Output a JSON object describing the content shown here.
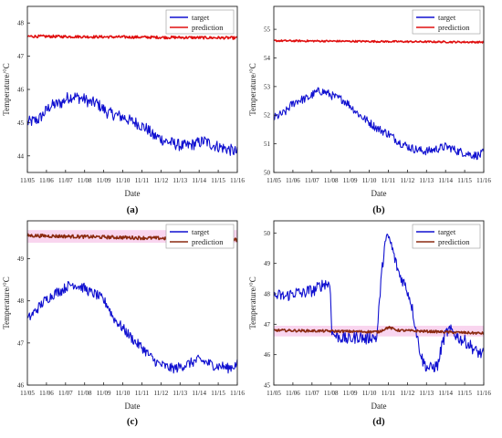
{
  "chart_data": [
    {
      "type": "line",
      "panel_label": "(a)",
      "xlabel": "Date",
      "ylabel": "Temperature/°C",
      "x_ticks": [
        "11/05",
        "11/06",
        "11/07",
        "11/08",
        "11/09",
        "11/10",
        "11/11",
        "11/12",
        "11/13",
        "11/14",
        "11/15",
        "11/16"
      ],
      "ylim": [
        43.5,
        48.5
      ],
      "y_ticks": [
        44,
        45,
        46,
        47,
        48
      ],
      "legend": "top-right",
      "band": null,
      "series": [
        {
          "name": "target",
          "color": "#1010d0",
          "noise": 0.18,
          "x": [
            0,
            0.3,
            0.6,
            0.9,
            1.2,
            1.5,
            1.8,
            2.1,
            2.4,
            2.7,
            3.0,
            3.3,
            3.6,
            3.9,
            4.2,
            4.5,
            4.8,
            5.1,
            5.4,
            5.7,
            6.0,
            6.3,
            6.6,
            6.9,
            7.2,
            7.5,
            7.8,
            8.1,
            8.4,
            8.7,
            9.0,
            9.3,
            9.6,
            9.9,
            10.2,
            10.5,
            10.8,
            11.0
          ],
          "y": [
            45.0,
            45.05,
            45.1,
            45.3,
            45.5,
            45.55,
            45.6,
            45.75,
            45.8,
            45.75,
            45.7,
            45.6,
            45.6,
            45.45,
            45.3,
            45.25,
            45.2,
            45.15,
            45.05,
            45.0,
            44.9,
            44.8,
            44.6,
            44.55,
            44.45,
            44.4,
            44.35,
            44.3,
            44.3,
            44.35,
            44.4,
            44.45,
            44.35,
            44.3,
            44.25,
            44.2,
            44.15,
            44.1
          ]
        },
        {
          "name": "prediction",
          "color": "#e01010",
          "noise": 0.04,
          "x": [
            0,
            11
          ],
          "y": [
            47.6,
            47.55
          ]
        }
      ]
    },
    {
      "type": "line",
      "panel_label": "(b)",
      "xlabel": "Date",
      "ylabel": "Temperature/°C",
      "x_ticks": [
        "11/05",
        "11/06",
        "11/07",
        "11/08",
        "11/09",
        "11/10",
        "11/11",
        "11/12",
        "11/13",
        "11/14",
        "11/15",
        "11/16"
      ],
      "ylim": [
        50,
        55.8
      ],
      "y_ticks": [
        50,
        51,
        52,
        53,
        54,
        55
      ],
      "legend": "top-right",
      "band": null,
      "series": [
        {
          "name": "target",
          "color": "#1010d0",
          "noise": 0.15,
          "x": [
            0,
            0.3,
            0.6,
            0.9,
            1.2,
            1.5,
            1.8,
            2.1,
            2.4,
            2.7,
            3.0,
            3.3,
            3.6,
            3.9,
            4.2,
            4.5,
            4.8,
            5.1,
            5.4,
            5.7,
            6.0,
            6.3,
            6.6,
            6.9,
            7.2,
            7.5,
            7.8,
            8.1,
            8.4,
            8.7,
            9.0,
            9.3,
            9.6,
            9.9,
            10.2,
            10.5,
            10.8,
            11.0
          ],
          "y": [
            51.9,
            52.0,
            52.1,
            52.35,
            52.5,
            52.55,
            52.6,
            52.75,
            52.85,
            52.8,
            52.7,
            52.6,
            52.55,
            52.4,
            52.2,
            52.0,
            51.85,
            51.7,
            51.55,
            51.45,
            51.35,
            51.2,
            51.05,
            50.95,
            50.85,
            50.8,
            50.75,
            50.75,
            50.8,
            50.85,
            50.9,
            50.85,
            50.75,
            50.7,
            50.65,
            50.6,
            50.6,
            50.7
          ]
        },
        {
          "name": "prediction",
          "color": "#e01010",
          "noise": 0.03,
          "x": [
            0,
            11
          ],
          "y": [
            54.6,
            54.55
          ]
        }
      ]
    },
    {
      "type": "line",
      "panel_label": "(c)",
      "xlabel": "Date",
      "ylabel": "Temperature/°C",
      "x_ticks": [
        "11/05",
        "11/06",
        "11/07",
        "11/08",
        "11/09",
        "11/10",
        "11/11",
        "11/12",
        "11/13",
        "11/14",
        "11/15",
        "11/16"
      ],
      "ylim": [
        46,
        49.9
      ],
      "y_ticks": [
        46,
        47,
        48,
        49
      ],
      "legend": "top-right",
      "band": {
        "low": 49.38,
        "high": 49.68,
        "color": "#f7c7ea"
      },
      "series": [
        {
          "name": "target",
          "color": "#1010d0",
          "noise": 0.12,
          "x": [
            0,
            0.3,
            0.6,
            0.9,
            1.2,
            1.5,
            1.8,
            2.1,
            2.4,
            2.7,
            3.0,
            3.3,
            3.6,
            3.9,
            4.2,
            4.5,
            4.8,
            5.1,
            5.4,
            5.7,
            6.0,
            6.3,
            6.6,
            6.9,
            7.2,
            7.5,
            7.8,
            8.1,
            8.4,
            8.7,
            9.0,
            9.3,
            9.6,
            9.9,
            10.2,
            10.5,
            10.8,
            11.0
          ],
          "y": [
            47.55,
            47.7,
            47.85,
            48.0,
            48.1,
            48.2,
            48.25,
            48.35,
            48.4,
            48.35,
            48.3,
            48.2,
            48.15,
            48.05,
            47.9,
            47.6,
            47.45,
            47.3,
            47.15,
            47.0,
            46.9,
            46.75,
            46.6,
            46.5,
            46.45,
            46.4,
            46.4,
            46.45,
            46.5,
            46.55,
            46.6,
            46.55,
            46.5,
            46.45,
            46.45,
            46.4,
            46.45,
            46.5
          ]
        },
        {
          "name": "prediction",
          "color": "#8b2a10",
          "noise": 0.04,
          "x": [
            0,
            11
          ],
          "y": [
            49.55,
            49.45
          ]
        }
      ]
    },
    {
      "type": "line",
      "panel_label": "(d)",
      "xlabel": "Date",
      "ylabel": "Temperature/°C",
      "x_ticks": [
        "11/05",
        "11/06",
        "11/07",
        "11/08",
        "11/09",
        "11/10",
        "11/11",
        "11/12",
        "11/13",
        "11/14",
        "11/15",
        "11/16"
      ],
      "ylim": [
        45,
        50.4
      ],
      "y_ticks": [
        45,
        46,
        47,
        48,
        49,
        50
      ],
      "legend": "top-right",
      "band": {
        "low": 46.6,
        "high": 46.95,
        "color": "#f7c7ea"
      },
      "series": [
        {
          "name": "target",
          "color": "#1010d0",
          "noise": 0.2,
          "x": [
            0,
            0.3,
            0.6,
            0.9,
            1.2,
            1.5,
            1.8,
            2.1,
            2.4,
            2.7,
            2.95,
            3.05,
            3.3,
            3.6,
            3.9,
            4.2,
            4.5,
            4.8,
            5.1,
            5.4,
            5.6,
            5.8,
            6.0,
            6.2,
            6.4,
            6.6,
            6.8,
            7.0,
            7.2,
            7.4,
            7.6,
            7.8,
            8.0,
            8.2,
            8.4,
            8.6,
            8.8,
            9.0,
            9.2,
            9.4,
            9.6,
            9.8,
            10.0,
            10.3,
            10.6,
            10.8,
            11.0
          ],
          "y": [
            47.9,
            47.95,
            47.9,
            48.0,
            48.05,
            48.0,
            48.1,
            48.1,
            48.25,
            48.35,
            48.3,
            46.7,
            46.6,
            46.55,
            46.5,
            46.55,
            46.6,
            46.5,
            46.6,
            46.55,
            48.3,
            49.6,
            49.9,
            49.5,
            49.0,
            48.6,
            48.4,
            48.1,
            47.7,
            47.0,
            46.3,
            45.8,
            45.6,
            45.55,
            45.6,
            45.65,
            46.3,
            46.7,
            46.8,
            46.75,
            46.6,
            46.5,
            46.45,
            46.3,
            46.1,
            46.05,
            46.0
          ]
        },
        {
          "name": "prediction",
          "color": "#8b2a10",
          "noise": 0.04,
          "x": [
            0,
            5.5,
            6.0,
            6.5,
            11
          ],
          "y": [
            46.8,
            46.75,
            46.9,
            46.8,
            46.7
          ]
        }
      ]
    }
  ]
}
